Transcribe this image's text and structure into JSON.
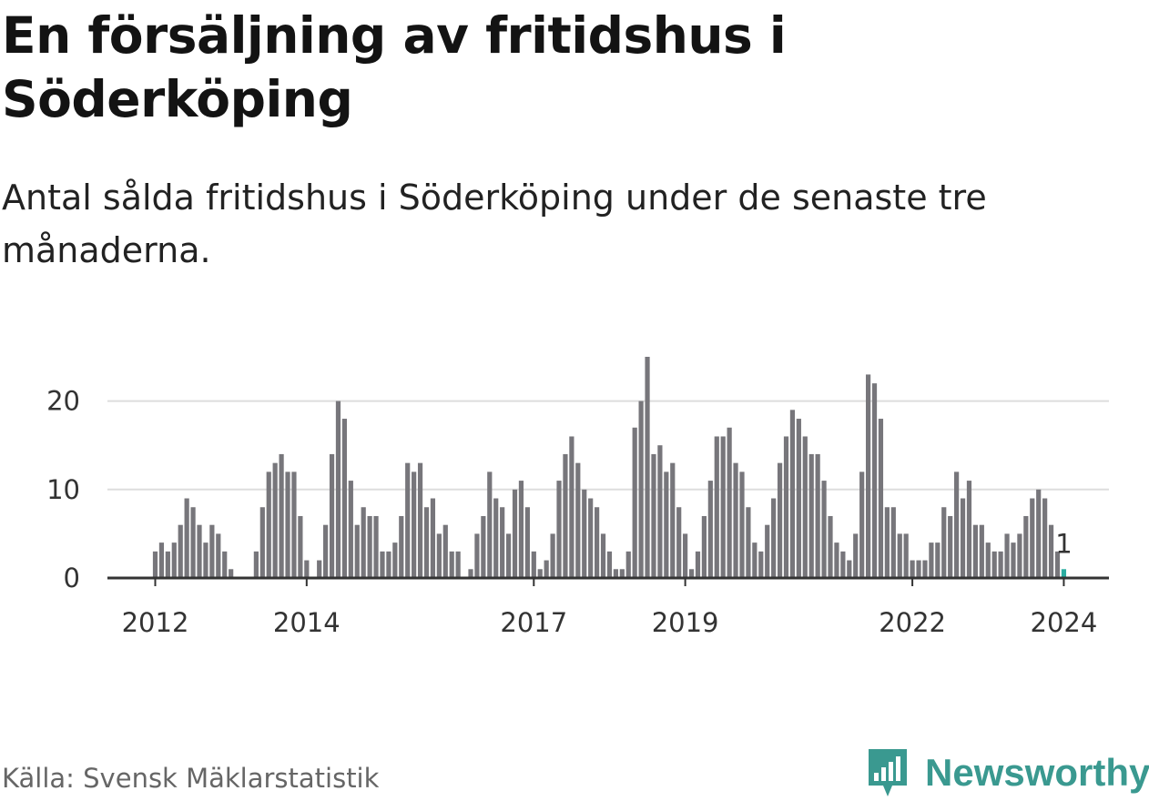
{
  "title": "En försäljning av fritidshus i Söderköping",
  "subtitle": "Antal sålda fritidshus i Söderköping under de senaste tre månaderna.",
  "source": "Källa: Svensk Mäklarstatistik",
  "brand": {
    "name": "Newsworthy",
    "icon": "newsworthy-logo-icon",
    "color": "#3a9990"
  },
  "colors": {
    "bar": "#77767b",
    "highlight": "#2bada1",
    "grid": "#dddddd",
    "baseline": "#333333"
  },
  "chart_data": {
    "type": "bar",
    "title": "En försäljning av fritidshus i Söderköping",
    "subtitle": "Antal sålda fritidshus i Söderköping under de senaste tre månaderna.",
    "xlabel": "",
    "ylabel": "",
    "ylim": [
      0,
      25
    ],
    "yticks": [
      0,
      10,
      20
    ],
    "grid": true,
    "xtick_labels": [
      "2012",
      "2014",
      "2017",
      "2019",
      "2022",
      "2024"
    ],
    "xtick_indices": [
      0,
      24,
      60,
      84,
      120,
      144
    ],
    "start_month": "2012-01",
    "end_month": "2024-01",
    "values": [
      3,
      4,
      3,
      4,
      6,
      9,
      8,
      6,
      4,
      6,
      5,
      3,
      1,
      0,
      0,
      0,
      3,
      8,
      12,
      13,
      14,
      12,
      12,
      7,
      2,
      0,
      2,
      6,
      14,
      20,
      18,
      11,
      6,
      8,
      7,
      7,
      3,
      3,
      4,
      7,
      13,
      12,
      13,
      8,
      9,
      5,
      6,
      3,
      3,
      0,
      1,
      5,
      7,
      12,
      9,
      8,
      5,
      10,
      11,
      8,
      3,
      1,
      2,
      5,
      11,
      14,
      16,
      13,
      10,
      9,
      8,
      5,
      3,
      1,
      1,
      3,
      17,
      20,
      25,
      14,
      15,
      12,
      13,
      8,
      5,
      1,
      3,
      7,
      11,
      16,
      16,
      17,
      13,
      12,
      8,
      4,
      3,
      6,
      9,
      13,
      16,
      19,
      18,
      16,
      14,
      14,
      11,
      7,
      4,
      3,
      2,
      5,
      12,
      23,
      22,
      18,
      8,
      8,
      5,
      5,
      2,
      2,
      2,
      4,
      4,
      8,
      7,
      12,
      9,
      11,
      6,
      6,
      4,
      3,
      3,
      5,
      4,
      5,
      7,
      9,
      10,
      9,
      6,
      3,
      1
    ],
    "highlight": {
      "index": 144,
      "label": "1"
    }
  }
}
